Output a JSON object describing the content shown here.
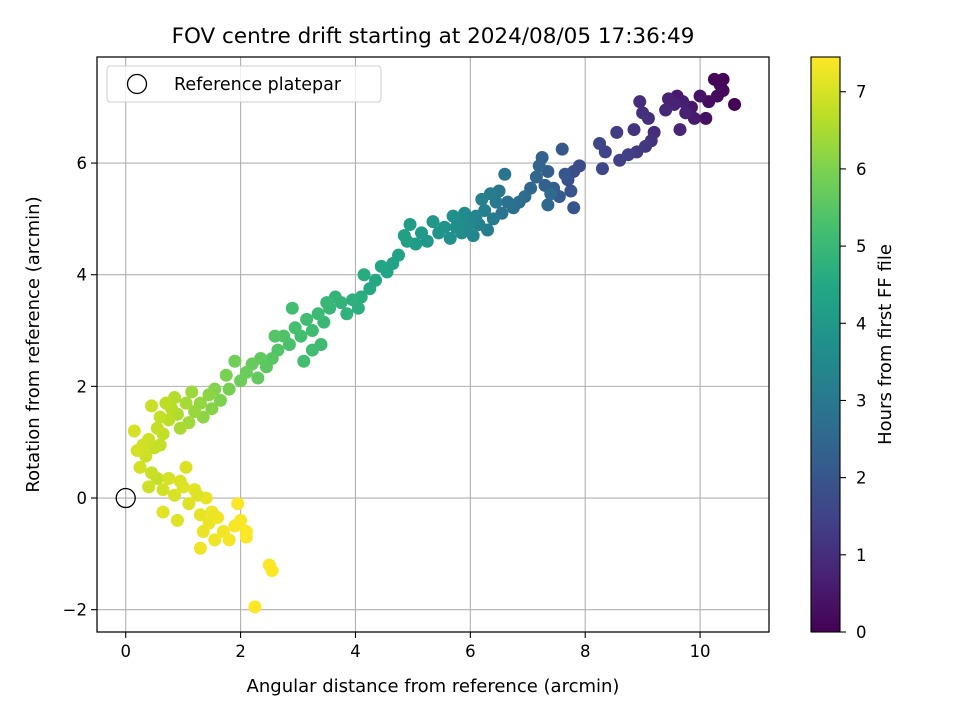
{
  "chart_data": {
    "type": "scatter",
    "title": "FOV centre drift starting at 2024/08/05 17:36:49",
    "xlabel": "Angular distance from reference (arcmin)",
    "ylabel": "Rotation from reference (arcmin)",
    "xlim": [
      -0.5,
      11.2
    ],
    "ylim": [
      -2.4,
      7.9
    ],
    "xticks": [
      0,
      2,
      4,
      6,
      8,
      10
    ],
    "yticks": [
      -2,
      0,
      2,
      4,
      6
    ],
    "xtick_labels": [
      "0",
      "2",
      "4",
      "6",
      "8",
      "10"
    ],
    "ytick_labels": [
      "−2",
      "0",
      "2",
      "4",
      "6"
    ],
    "grid": true,
    "legend": {
      "placement": "top-left",
      "entries": [
        "Reference platepar"
      ]
    },
    "reference_point": {
      "x": 0,
      "y": 0,
      "label": "Reference platepar"
    },
    "colorbar": {
      "label": "Hours from first FF file",
      "range": [
        0,
        7.45
      ],
      "ticks": [
        0,
        1,
        2,
        3,
        4,
        5,
        6,
        7
      ],
      "tick_labels": [
        "0",
        "1",
        "2",
        "3",
        "4",
        "5",
        "6",
        "7"
      ],
      "colormap": "viridis"
    },
    "point_format": [
      "x",
      "y",
      "hours"
    ],
    "points": [
      [
        10.6,
        7.05,
        0.02
      ],
      [
        10.4,
        7.5,
        0.05
      ],
      [
        10.35,
        7.4,
        0.1
      ],
      [
        10.25,
        7.5,
        0.12
      ],
      [
        10.3,
        7.2,
        0.2
      ],
      [
        10.15,
        7.1,
        0.25
      ],
      [
        10.4,
        7.3,
        0.18
      ],
      [
        10.1,
        6.8,
        0.35
      ],
      [
        10.0,
        7.2,
        0.4
      ],
      [
        9.85,
        7.0,
        0.5
      ],
      [
        9.9,
        6.8,
        0.55
      ],
      [
        9.7,
        7.1,
        0.65
      ],
      [
        9.6,
        7.2,
        0.6
      ],
      [
        9.75,
        6.9,
        0.7
      ],
      [
        9.65,
        6.6,
        0.78
      ],
      [
        9.55,
        7.05,
        0.75
      ],
      [
        9.45,
        7.15,
        0.72
      ],
      [
        9.4,
        6.95,
        0.85
      ],
      [
        9.2,
        6.55,
        0.95
      ],
      [
        9.1,
        6.8,
        1.0
      ],
      [
        9.0,
        6.9,
        1.05
      ],
      [
        8.95,
        7.1,
        1.0
      ],
      [
        9.15,
        6.4,
        1.1
      ],
      [
        9.05,
        6.3,
        1.2
      ],
      [
        8.85,
        6.6,
        1.15
      ],
      [
        8.9,
        6.2,
        1.3
      ],
      [
        8.75,
        6.15,
        1.4
      ],
      [
        8.55,
        6.55,
        1.35
      ],
      [
        8.6,
        6.05,
        1.45
      ],
      [
        8.35,
        6.2,
        1.5
      ],
      [
        8.25,
        6.35,
        1.6
      ],
      [
        8.3,
        5.9,
        1.65
      ],
      [
        7.9,
        5.95,
        1.75
      ],
      [
        7.8,
        5.85,
        1.8
      ],
      [
        7.7,
        5.7,
        1.85
      ],
      [
        7.75,
        5.5,
        1.95
      ],
      [
        7.8,
        5.2,
        2.0
      ],
      [
        7.65,
        5.8,
        2.05
      ],
      [
        7.6,
        6.25,
        2.1
      ],
      [
        7.55,
        5.4,
        2.15
      ],
      [
        7.45,
        5.55,
        2.2
      ],
      [
        7.35,
        5.85,
        2.25
      ],
      [
        7.3,
        5.6,
        2.3
      ],
      [
        7.25,
        6.1,
        2.35
      ],
      [
        7.2,
        5.95,
        2.4
      ],
      [
        7.15,
        5.75,
        2.45
      ],
      [
        7.05,
        5.55,
        2.5
      ],
      [
        7.35,
        5.25,
        2.55
      ],
      [
        7.4,
        5.45,
        2.6
      ],
      [
        6.95,
        5.4,
        2.65
      ],
      [
        6.85,
        5.3,
        2.7
      ],
      [
        6.75,
        5.2,
        2.75
      ],
      [
        6.65,
        5.3,
        2.8
      ],
      [
        6.55,
        5.1,
        2.85
      ],
      [
        6.6,
        5.8,
        2.9
      ],
      [
        6.5,
        5.5,
        2.95
      ],
      [
        6.45,
        5.3,
        3.0
      ],
      [
        6.4,
        5.0,
        3.05
      ],
      [
        6.35,
        5.45,
        3.1
      ],
      [
        6.3,
        4.8,
        3.15
      ],
      [
        6.25,
        5.15,
        3.2
      ],
      [
        6.2,
        5.35,
        3.25
      ],
      [
        6.15,
        4.9,
        3.3
      ],
      [
        6.1,
        5.05,
        3.35
      ],
      [
        6.05,
        4.7,
        3.4
      ],
      [
        6.0,
        4.95,
        3.45
      ],
      [
        5.95,
        4.85,
        3.5
      ],
      [
        5.9,
        5.1,
        3.55
      ],
      [
        5.85,
        4.75,
        3.6
      ],
      [
        5.8,
        4.95,
        3.65
      ],
      [
        5.75,
        4.85,
        3.7
      ],
      [
        5.7,
        5.05,
        3.75
      ],
      [
        5.65,
        4.65,
        3.8
      ],
      [
        5.55,
        4.85,
        3.85
      ],
      [
        5.45,
        4.75,
        3.9
      ],
      [
        5.35,
        4.95,
        3.95
      ],
      [
        5.25,
        4.6,
        4.0
      ],
      [
        5.15,
        4.75,
        4.05
      ],
      [
        5.05,
        4.55,
        4.1
      ],
      [
        4.95,
        4.9,
        4.15
      ],
      [
        4.9,
        4.6,
        4.2
      ],
      [
        4.85,
        4.7,
        4.25
      ],
      [
        4.75,
        4.35,
        4.3
      ],
      [
        4.65,
        4.2,
        4.35
      ],
      [
        4.55,
        4.05,
        4.4
      ],
      [
        4.45,
        4.15,
        4.45
      ],
      [
        4.35,
        3.9,
        4.5
      ],
      [
        4.25,
        3.75,
        4.55
      ],
      [
        4.15,
        4.0,
        4.6
      ],
      [
        4.1,
        3.6,
        4.65
      ],
      [
        4.05,
        3.4,
        4.7
      ],
      [
        3.95,
        3.55,
        4.75
      ],
      [
        3.85,
        3.3,
        4.8
      ],
      [
        3.75,
        3.5,
        4.85
      ],
      [
        3.65,
        3.6,
        4.9
      ],
      [
        3.55,
        3.4,
        4.95
      ],
      [
        3.45,
        3.15,
        5.0
      ],
      [
        3.35,
        3.3,
        5.05
      ],
      [
        3.25,
        3.0,
        5.1
      ],
      [
        3.15,
        3.2,
        5.15
      ],
      [
        3.05,
        2.9,
        5.2
      ],
      [
        2.95,
        3.05,
        5.25
      ],
      [
        2.85,
        2.75,
        5.3
      ],
      [
        2.75,
        2.9,
        5.35
      ],
      [
        2.65,
        2.65,
        5.4
      ],
      [
        2.6,
        2.9,
        5.45
      ],
      [
        2.55,
        2.5,
        5.5
      ],
      [
        2.45,
        2.35,
        5.55
      ],
      [
        2.35,
        2.5,
        5.6
      ],
      [
        3.4,
        2.75,
        5.1
      ],
      [
        3.25,
        2.65,
        5.15
      ],
      [
        2.9,
        3.4,
        5.2
      ],
      [
        3.5,
        3.5,
        5.0
      ],
      [
        3.1,
        2.45,
        5.2
      ],
      [
        2.3,
        2.15,
        5.65
      ],
      [
        2.2,
        2.4,
        5.7
      ],
      [
        2.1,
        2.25,
        5.75
      ],
      [
        2.0,
        2.1,
        5.8
      ],
      [
        1.9,
        2.45,
        5.85
      ],
      [
        1.8,
        1.95,
        5.9
      ],
      [
        1.75,
        2.2,
        5.95
      ],
      [
        1.65,
        1.75,
        6.0
      ],
      [
        1.55,
        1.95,
        6.05
      ],
      [
        1.5,
        1.6,
        6.1
      ],
      [
        1.45,
        1.85,
        6.15
      ],
      [
        1.35,
        1.45,
        6.2
      ],
      [
        1.3,
        1.7,
        6.25
      ],
      [
        1.2,
        1.55,
        6.3
      ],
      [
        1.15,
        1.9,
        6.35
      ],
      [
        1.1,
        1.35,
        6.4
      ],
      [
        1.05,
        1.7,
        6.45
      ],
      [
        0.95,
        1.25,
        6.5
      ],
      [
        0.9,
        1.5,
        6.55
      ],
      [
        0.85,
        1.8,
        6.6
      ],
      [
        0.8,
        1.6,
        6.65
      ],
      [
        0.75,
        1.4,
        6.7
      ],
      [
        0.7,
        1.7,
        6.72
      ],
      [
        0.65,
        1.15,
        6.75
      ],
      [
        0.6,
        1.45,
        6.78
      ],
      [
        0.55,
        1.25,
        6.8
      ],
      [
        0.5,
        0.9,
        6.82
      ],
      [
        0.45,
        1.65,
        6.85
      ],
      [
        0.4,
        1.05,
        6.88
      ],
      [
        0.35,
        0.75,
        6.9
      ],
      [
        0.3,
        0.95,
        6.92
      ],
      [
        0.25,
        0.55,
        6.95
      ],
      [
        0.2,
        0.85,
        6.97
      ],
      [
        0.15,
        1.2,
        7.0
      ],
      [
        0.6,
        0.95,
        6.8
      ],
      [
        0.55,
        0.35,
        6.8
      ],
      [
        0.45,
        0.45,
        6.85
      ],
      [
        0.4,
        0.2,
        6.9
      ],
      [
        0.65,
        0.15,
        6.95
      ],
      [
        0.75,
        0.35,
        7.0
      ],
      [
        0.85,
        0.05,
        7.02
      ],
      [
        0.95,
        0.3,
        7.05
      ],
      [
        1.05,
        0.55,
        7.05
      ],
      [
        1.0,
        0.2,
        7.08
      ],
      [
        1.1,
        -0.1,
        7.1
      ],
      [
        0.9,
        -0.4,
        7.1
      ],
      [
        0.65,
        -0.25,
        7.12
      ],
      [
        1.2,
        0.15,
        7.15
      ],
      [
        1.3,
        -0.3,
        7.18
      ],
      [
        1.4,
        0.0,
        7.2
      ],
      [
        1.35,
        -0.6,
        7.22
      ],
      [
        1.45,
        -0.45,
        7.25
      ],
      [
        1.55,
        -0.75,
        7.28
      ],
      [
        1.6,
        -0.35,
        7.3
      ],
      [
        1.7,
        -0.6,
        7.32
      ],
      [
        1.8,
        -0.75,
        7.35
      ],
      [
        1.9,
        -0.5,
        7.38
      ],
      [
        2.0,
        -0.4,
        7.4
      ],
      [
        1.95,
        -0.1,
        7.4
      ],
      [
        2.1,
        -0.6,
        7.42
      ],
      [
        2.1,
        -0.7,
        7.43
      ],
      [
        1.3,
        -0.9,
        7.3
      ],
      [
        1.5,
        -0.25,
        7.25
      ],
      [
        1.25,
        0.05,
        7.1
      ],
      [
        2.5,
        -1.2,
        7.44
      ],
      [
        2.55,
        -1.3,
        7.45
      ],
      [
        2.25,
        -1.95,
        7.45
      ]
    ]
  }
}
